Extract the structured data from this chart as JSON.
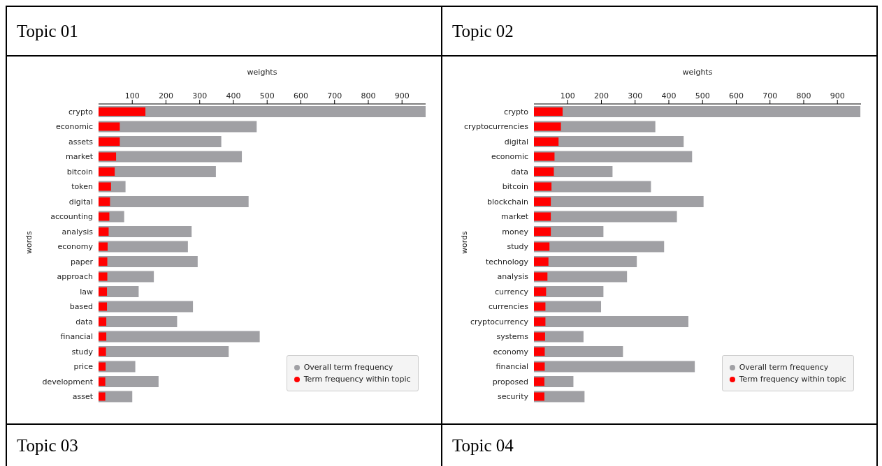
{
  "chart_data": [
    {
      "type": "bar",
      "orientation": "horizontal",
      "title": "Topic 01",
      "xlabel": "weights",
      "ylabel": "words",
      "legend": "bottom right",
      "categories": [
        "crypto",
        "economic",
        "assets",
        "market",
        "bitcoin",
        "token",
        "digital",
        "accounting",
        "analysis",
        "economy",
        "paper",
        "approach",
        "law",
        "based",
        "data",
        "financial",
        "study",
        "price",
        "development",
        "asset"
      ],
      "series": [
        {
          "name": "Overall term frequency",
          "color": "#a0a0a4",
          "values": [
            970,
            469,
            364,
            425,
            348,
            80,
            445,
            76,
            276,
            265,
            294,
            164,
            119,
            280,
            233,
            478,
            386,
            109,
            178,
            100
          ]
        },
        {
          "name": "Term frequency within topic",
          "color": "#ff0000",
          "values": [
            139,
            63,
            63,
            52,
            48,
            37,
            34,
            32,
            30,
            27,
            26,
            26,
            25,
            25,
            23,
            23,
            22,
            21,
            20,
            20
          ]
        }
      ],
      "xlim": [
        0,
        970
      ],
      "xticks": [
        100,
        200,
        300,
        400,
        500,
        600,
        700,
        800,
        900
      ]
    },
    {
      "type": "bar",
      "orientation": "horizontal",
      "title": "Topic 02",
      "xlabel": "weights",
      "ylabel": "words",
      "legend": "bottom right",
      "categories": [
        "crypto",
        "cryptocurrencies",
        "digital",
        "economic",
        "data",
        "bitcoin",
        "blockchain",
        "market",
        "money",
        "study",
        "technology",
        "analysis",
        "currency",
        "currencies",
        "cryptocurrency",
        "systems",
        "economy",
        "financial",
        "proposed",
        "security"
      ],
      "series": [
        {
          "name": "Overall term frequency",
          "color": "#a0a0a4",
          "values": [
            968,
            360,
            444,
            469,
            233,
            347,
            503,
            424,
            206,
            386,
            305,
            276,
            206,
            199,
            458,
            147,
            264,
            477,
            117,
            150
          ]
        },
        {
          "name": "Term frequency within topic",
          "color": "#ff0000",
          "values": [
            85,
            80,
            73,
            61,
            59,
            52,
            50,
            50,
            50,
            46,
            43,
            40,
            36,
            34,
            34,
            33,
            32,
            32,
            31,
            31
          ]
        }
      ],
      "xlim": [
        0,
        970
      ],
      "xticks": [
        100,
        200,
        300,
        400,
        500,
        600,
        700,
        800,
        900
      ]
    },
    {
      "type": "other",
      "title": "Topic 03"
    },
    {
      "type": "other",
      "title": "Topic 04"
    }
  ]
}
